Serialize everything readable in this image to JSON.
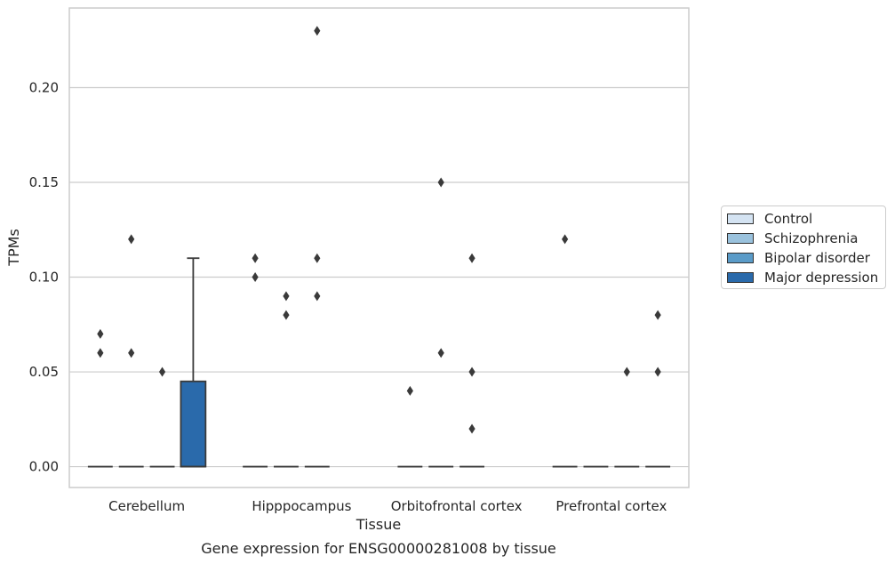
{
  "chart_data": {
    "type": "box",
    "title": "Gene expression for ENSG00000281008 by tissue",
    "xlabel": "Tissue",
    "ylabel": "TPMs",
    "ylim": [
      -0.011,
      0.242
    ],
    "yticks": [
      "0.00",
      "0.05",
      "0.10",
      "0.15",
      "0.20"
    ],
    "categories": [
      "Cerebellum",
      "Hipppocampus",
      "Orbitofrontal cortex",
      "Prefrontal cortex"
    ],
    "grid": "horizontal",
    "legend_position": "right",
    "series": [
      {
        "name": "Control",
        "color": "#d4e3f2",
        "boxes": [
          {
            "q1": 0,
            "median": 0,
            "q3": 0,
            "whisker_low": 0,
            "whisker_high": 0,
            "outliers": [
              0.07,
              0.06
            ]
          },
          {
            "q1": 0,
            "median": 0,
            "q3": 0,
            "whisker_low": 0,
            "whisker_high": 0,
            "outliers": [
              0.11,
              0.1
            ]
          },
          {
            "q1": 0,
            "median": 0,
            "q3": 0,
            "whisker_low": 0,
            "whisker_high": 0,
            "outliers": [
              0.04
            ]
          },
          {
            "q1": 0,
            "median": 0,
            "q3": 0,
            "whisker_low": 0,
            "whisker_high": 0,
            "outliers": [
              0.12
            ]
          }
        ]
      },
      {
        "name": "Schizophrenia",
        "color": "#9ac2dd",
        "boxes": [
          {
            "q1": 0,
            "median": 0,
            "q3": 0,
            "whisker_low": 0,
            "whisker_high": 0,
            "outliers": [
              0.12,
              0.06
            ]
          },
          {
            "q1": 0,
            "median": 0,
            "q3": 0,
            "whisker_low": 0,
            "whisker_high": 0,
            "outliers": [
              0.09,
              0.08
            ]
          },
          {
            "q1": 0,
            "median": 0,
            "q3": 0,
            "whisker_low": 0,
            "whisker_high": 0,
            "outliers": [
              0.15,
              0.06
            ]
          },
          {
            "q1": 0,
            "median": 0,
            "q3": 0,
            "whisker_low": 0,
            "whisker_high": 0,
            "outliers": []
          }
        ]
      },
      {
        "name": "Bipolar disorder",
        "color": "#5a9bc8",
        "boxes": [
          {
            "q1": 0,
            "median": 0,
            "q3": 0,
            "whisker_low": 0,
            "whisker_high": 0,
            "outliers": [
              0.05
            ]
          },
          {
            "q1": 0,
            "median": 0,
            "q3": 0,
            "whisker_low": 0,
            "whisker_high": 0,
            "outliers": [
              0.23,
              0.11,
              0.09
            ]
          },
          {
            "q1": 0,
            "median": 0,
            "q3": 0,
            "whisker_low": 0,
            "whisker_high": 0,
            "outliers": [
              0.11,
              0.05,
              0.02
            ]
          },
          {
            "q1": 0,
            "median": 0,
            "q3": 0,
            "whisker_low": 0,
            "whisker_high": 0,
            "outliers": [
              0.05
            ]
          }
        ]
      },
      {
        "name": "Major depression",
        "color": "#2a6aab",
        "boxes": [
          {
            "q1": 0,
            "median": 0,
            "q3": 0.045,
            "whisker_low": 0,
            "whisker_high": 0.11,
            "outliers": []
          },
          null,
          null,
          {
            "q1": 0,
            "median": 0,
            "q3": 0,
            "whisker_low": 0,
            "whisker_high": 0,
            "outliers": [
              0.08,
              0.05
            ]
          }
        ]
      }
    ]
  }
}
